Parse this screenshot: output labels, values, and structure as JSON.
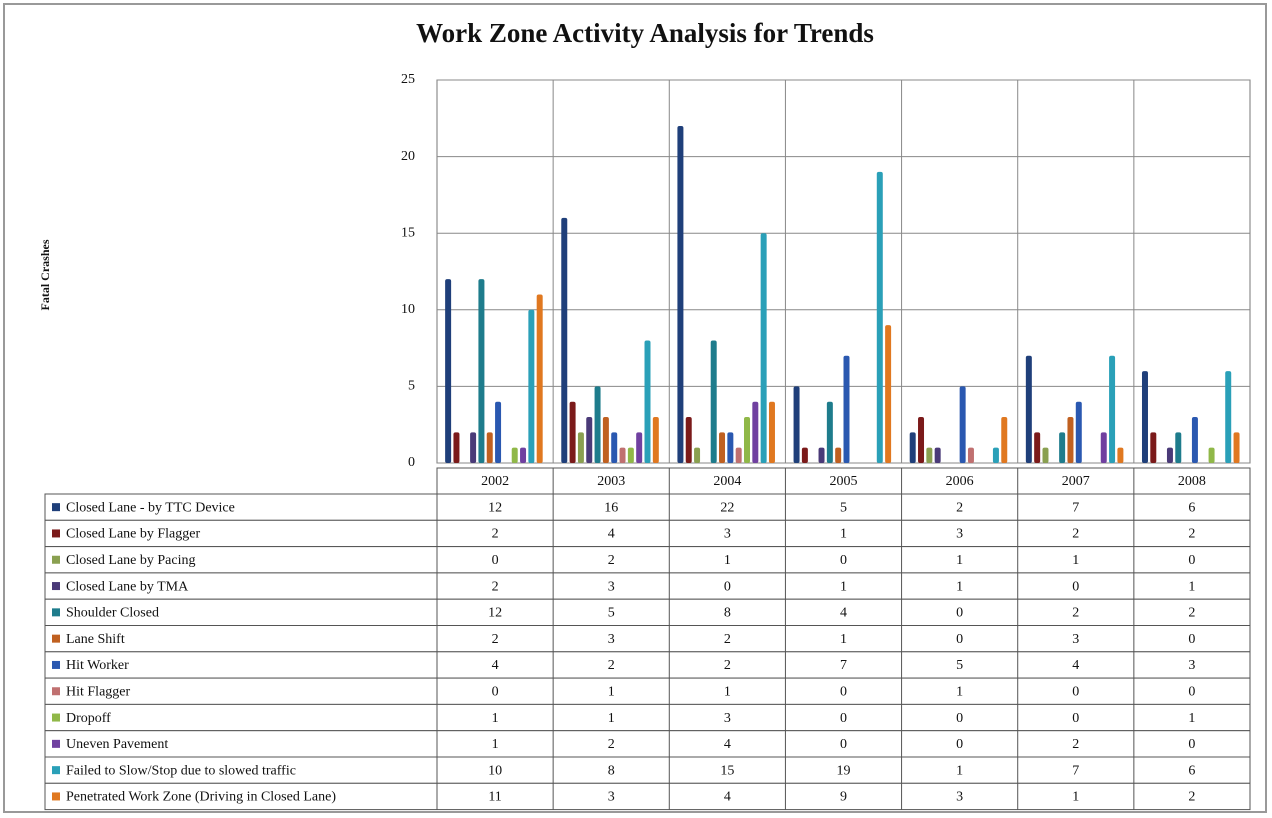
{
  "chart_data": {
    "type": "bar",
    "title": "Work Zone Activity Analysis for Trends",
    "y_label": "Fatal Crashes",
    "categories": [
      "2002",
      "2003",
      "2004",
      "2005",
      "2006",
      "2007",
      "2008"
    ],
    "ylim": [
      0,
      25
    ],
    "yticks": [
      0,
      5,
      10,
      15,
      20,
      25
    ],
    "grid": true,
    "series": [
      {
        "name": "Closed Lane - by TTC Device",
        "color": "#1f3f7a",
        "values": [
          12,
          16,
          22,
          5,
          2,
          7,
          6
        ]
      },
      {
        "name": "Closed Lane by Flagger",
        "color": "#7b1a1a",
        "values": [
          2,
          4,
          3,
          1,
          3,
          2,
          2
        ]
      },
      {
        "name": "Closed Lane by Pacing",
        "color": "#8aa050",
        "values": [
          0,
          2,
          1,
          0,
          1,
          1,
          0
        ]
      },
      {
        "name": "Closed Lane by TMA",
        "color": "#4a3a78",
        "values": [
          2,
          3,
          0,
          1,
          1,
          0,
          1
        ]
      },
      {
        "name": "Shoulder Closed",
        "color": "#1e7c8c",
        "values": [
          12,
          5,
          8,
          4,
          0,
          2,
          2
        ]
      },
      {
        "name": "Lane Shift",
        "color": "#c06020",
        "values": [
          2,
          3,
          2,
          1,
          0,
          3,
          0
        ]
      },
      {
        "name": "Hit Worker",
        "color": "#2a58b0",
        "values": [
          4,
          2,
          2,
          7,
          5,
          4,
          3
        ]
      },
      {
        "name": "Hit Flagger",
        "color": "#c07070",
        "values": [
          0,
          1,
          1,
          0,
          1,
          0,
          0
        ]
      },
      {
        "name": "Dropoff",
        "color": "#90b848",
        "values": [
          1,
          1,
          3,
          0,
          0,
          0,
          1
        ]
      },
      {
        "name": "Uneven Pavement",
        "color": "#7040a0",
        "values": [
          1,
          2,
          4,
          0,
          0,
          2,
          0
        ]
      },
      {
        "name": "Failed to Slow/Stop due to slowed traffic",
        "color": "#2aa0b8",
        "values": [
          10,
          8,
          15,
          19,
          1,
          7,
          6
        ]
      },
      {
        "name": "Penetrated Work Zone (Driving in Closed Lane)",
        "color": "#e07820",
        "values": [
          11,
          3,
          4,
          9,
          3,
          1,
          2
        ]
      }
    ]
  }
}
